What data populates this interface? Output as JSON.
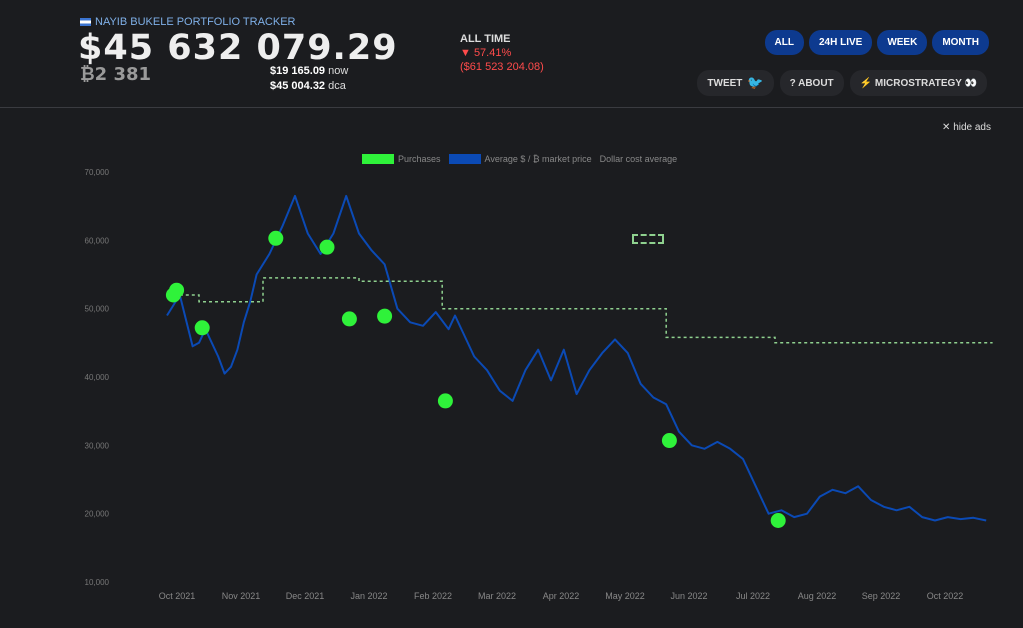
{
  "header": {
    "brand": "NAYIB BUKELE PORTFOLIO TRACKER",
    "total_value": "$45 632 079.29",
    "btc_amount": "₿2 381",
    "now_price": "$19 165.09",
    "now_label": "now",
    "dca_price": "$45 004.32",
    "dca_label": "dca",
    "all_time_label": "ALL TIME",
    "all_time_pct": "▼ 57.41%",
    "all_time_delta": "($61 523 204.08)",
    "range_buttons": [
      "ALL",
      "24H LIVE",
      "WEEK",
      "MONTH"
    ],
    "tweet_label": "TWEET",
    "about_label": "? ABOUT",
    "micro_label": "⚡ MICROSTRATEGY 👀",
    "hide_ads_label": "hide ads"
  },
  "colors": {
    "purchases": "#2ff23a",
    "average": "#0b4ab5",
    "dca": "#8fd18f"
  },
  "chart_data": {
    "type": "line",
    "legend": [
      "Purchases",
      "Average $ / ₿ market price",
      "Dollar cost average"
    ],
    "x_ticks": [
      "Oct 2021",
      "Nov 2021",
      "Dec 2021",
      "Jan 2022",
      "Feb 2022",
      "Mar 2022",
      "Apr 2022",
      "May 2022",
      "Jun 2022",
      "Jul 2022",
      "Aug 2022",
      "Sep 2022",
      "Oct 2022"
    ],
    "y_ticks": [
      "70,000",
      "60,000",
      "50,000",
      "40,000",
      "30,000",
      "20,000",
      "10,000"
    ],
    "ylim": [
      10000,
      70000
    ],
    "xlim": [
      0,
      13
    ],
    "grid": false,
    "series": [
      {
        "name": "Average $ / ₿ market price",
        "x": [
          0,
          0.2,
          0.4,
          0.5,
          0.6,
          0.8,
          0.9,
          1.0,
          1.1,
          1.2,
          1.3,
          1.4,
          1.6,
          1.8,
          2.0,
          2.2,
          2.4,
          2.6,
          2.8,
          3.0,
          3.2,
          3.4,
          3.6,
          3.8,
          4.0,
          4.2,
          4.4,
          4.5,
          4.8,
          5.0,
          5.2,
          5.4,
          5.6,
          5.8,
          6.0,
          6.2,
          6.4,
          6.6,
          6.8,
          7.0,
          7.2,
          7.4,
          7.6,
          7.8,
          8.0,
          8.2,
          8.4,
          8.6,
          8.8,
          9.0,
          9.2,
          9.4,
          9.6,
          9.8,
          10.0,
          10.2,
          10.4,
          10.6,
          10.8,
          11.0,
          11.2,
          11.4,
          11.6,
          11.8,
          12.0,
          12.2,
          12.4,
          12.6,
          12.8
        ],
        "y": [
          49000,
          52000,
          44500,
          45000,
          47000,
          43000,
          40500,
          41500,
          44000,
          48000,
          51000,
          55000,
          58000,
          62000,
          66500,
          61000,
          58000,
          61000,
          66500,
          61000,
          58500,
          56500,
          50000,
          48000,
          47500,
          49500,
          47000,
          49000,
          43000,
          41000,
          38000,
          36500,
          41000,
          44000,
          39500,
          44000,
          37500,
          41000,
          43500,
          45500,
          43500,
          39000,
          37000,
          36000,
          32000,
          30000,
          29500,
          30500,
          29500,
          28000,
          24000,
          20000,
          20500,
          19500,
          20000,
          22500,
          23500,
          23000,
          24000,
          22000,
          21000,
          20500,
          21000,
          19500,
          19000,
          19500,
          19200,
          19400,
          19000
        ]
      },
      {
        "name": "Dollar cost average",
        "x": [
          0.2,
          0.5,
          0.5,
          1.5,
          1.5,
          3.0,
          3.0,
          4.3,
          4.3,
          7.8,
          7.8,
          9.5,
          9.5,
          12.9
        ],
        "y": [
          52000,
          52000,
          51000,
          51000,
          54500,
          54500,
          54000,
          54000,
          50000,
          50000,
          45800,
          45800,
          45000,
          45000
        ]
      },
      {
        "name": "Purchases",
        "x": [
          0.1,
          0.15,
          0.55,
          1.7,
          2.5,
          2.85,
          3.4,
          4.35,
          7.85,
          9.55
        ],
        "y": [
          52000,
          52700,
          47200,
          60300,
          59000,
          48500,
          48900,
          36500,
          30700,
          19000
        ]
      }
    ]
  }
}
